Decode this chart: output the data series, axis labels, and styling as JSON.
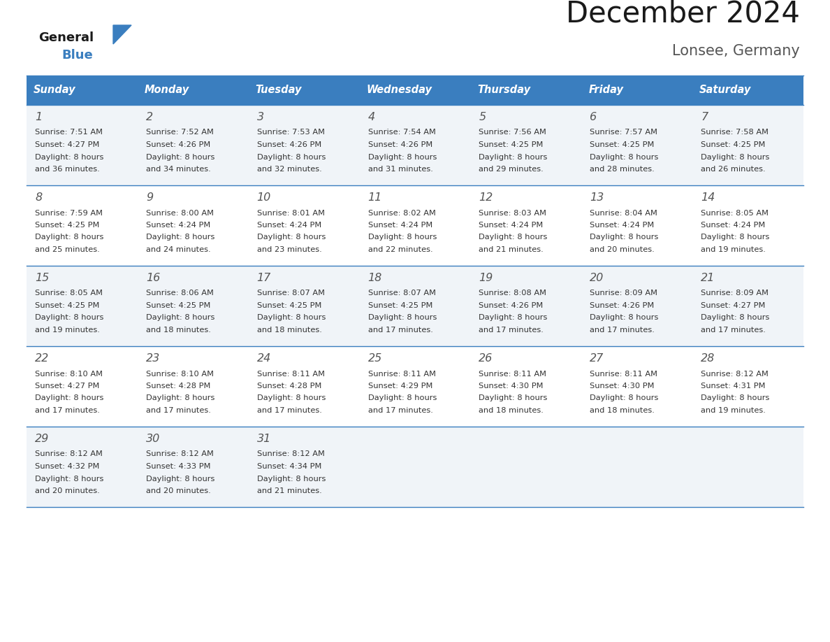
{
  "title": "December 2024",
  "subtitle": "Lonsee, Germany",
  "days_of_week": [
    "Sunday",
    "Monday",
    "Tuesday",
    "Wednesday",
    "Thursday",
    "Friday",
    "Saturday"
  ],
  "header_bg": "#3a7ebf",
  "header_text": "#ffffff",
  "row_bg_odd": "#f0f4f8",
  "row_bg_even": "#ffffff",
  "cell_text": "#333333",
  "day_num_color": "#666666",
  "line_color": "#3a7ebf",
  "weeks": [
    {
      "days": [
        {
          "date": 1,
          "sunrise": "7:51 AM",
          "sunset": "4:27 PM",
          "daylight_hours": 8,
          "daylight_minutes": 36
        },
        {
          "date": 2,
          "sunrise": "7:52 AM",
          "sunset": "4:26 PM",
          "daylight_hours": 8,
          "daylight_minutes": 34
        },
        {
          "date": 3,
          "sunrise": "7:53 AM",
          "sunset": "4:26 PM",
          "daylight_hours": 8,
          "daylight_minutes": 32
        },
        {
          "date": 4,
          "sunrise": "7:54 AM",
          "sunset": "4:26 PM",
          "daylight_hours": 8,
          "daylight_minutes": 31
        },
        {
          "date": 5,
          "sunrise": "7:56 AM",
          "sunset": "4:25 PM",
          "daylight_hours": 8,
          "daylight_minutes": 29
        },
        {
          "date": 6,
          "sunrise": "7:57 AM",
          "sunset": "4:25 PM",
          "daylight_hours": 8,
          "daylight_minutes": 28
        },
        {
          "date": 7,
          "sunrise": "7:58 AM",
          "sunset": "4:25 PM",
          "daylight_hours": 8,
          "daylight_minutes": 26
        }
      ]
    },
    {
      "days": [
        {
          "date": 8,
          "sunrise": "7:59 AM",
          "sunset": "4:25 PM",
          "daylight_hours": 8,
          "daylight_minutes": 25
        },
        {
          "date": 9,
          "sunrise": "8:00 AM",
          "sunset": "4:24 PM",
          "daylight_hours": 8,
          "daylight_minutes": 24
        },
        {
          "date": 10,
          "sunrise": "8:01 AM",
          "sunset": "4:24 PM",
          "daylight_hours": 8,
          "daylight_minutes": 23
        },
        {
          "date": 11,
          "sunrise": "8:02 AM",
          "sunset": "4:24 PM",
          "daylight_hours": 8,
          "daylight_minutes": 22
        },
        {
          "date": 12,
          "sunrise": "8:03 AM",
          "sunset": "4:24 PM",
          "daylight_hours": 8,
          "daylight_minutes": 21
        },
        {
          "date": 13,
          "sunrise": "8:04 AM",
          "sunset": "4:24 PM",
          "daylight_hours": 8,
          "daylight_minutes": 20
        },
        {
          "date": 14,
          "sunrise": "8:05 AM",
          "sunset": "4:24 PM",
          "daylight_hours": 8,
          "daylight_minutes": 19
        }
      ]
    },
    {
      "days": [
        {
          "date": 15,
          "sunrise": "8:05 AM",
          "sunset": "4:25 PM",
          "daylight_hours": 8,
          "daylight_minutes": 19
        },
        {
          "date": 16,
          "sunrise": "8:06 AM",
          "sunset": "4:25 PM",
          "daylight_hours": 8,
          "daylight_minutes": 18
        },
        {
          "date": 17,
          "sunrise": "8:07 AM",
          "sunset": "4:25 PM",
          "daylight_hours": 8,
          "daylight_minutes": 18
        },
        {
          "date": 18,
          "sunrise": "8:07 AM",
          "sunset": "4:25 PM",
          "daylight_hours": 8,
          "daylight_minutes": 17
        },
        {
          "date": 19,
          "sunrise": "8:08 AM",
          "sunset": "4:26 PM",
          "daylight_hours": 8,
          "daylight_minutes": 17
        },
        {
          "date": 20,
          "sunrise": "8:09 AM",
          "sunset": "4:26 PM",
          "daylight_hours": 8,
          "daylight_minutes": 17
        },
        {
          "date": 21,
          "sunrise": "8:09 AM",
          "sunset": "4:27 PM",
          "daylight_hours": 8,
          "daylight_minutes": 17
        }
      ]
    },
    {
      "days": [
        {
          "date": 22,
          "sunrise": "8:10 AM",
          "sunset": "4:27 PM",
          "daylight_hours": 8,
          "daylight_minutes": 17
        },
        {
          "date": 23,
          "sunrise": "8:10 AM",
          "sunset": "4:28 PM",
          "daylight_hours": 8,
          "daylight_minutes": 17
        },
        {
          "date": 24,
          "sunrise": "8:11 AM",
          "sunset": "4:28 PM",
          "daylight_hours": 8,
          "daylight_minutes": 17
        },
        {
          "date": 25,
          "sunrise": "8:11 AM",
          "sunset": "4:29 PM",
          "daylight_hours": 8,
          "daylight_minutes": 17
        },
        {
          "date": 26,
          "sunrise": "8:11 AM",
          "sunset": "4:30 PM",
          "daylight_hours": 8,
          "daylight_minutes": 18
        },
        {
          "date": 27,
          "sunrise": "8:11 AM",
          "sunset": "4:30 PM",
          "daylight_hours": 8,
          "daylight_minutes": 18
        },
        {
          "date": 28,
          "sunrise": "8:12 AM",
          "sunset": "4:31 PM",
          "daylight_hours": 8,
          "daylight_minutes": 19
        }
      ]
    },
    {
      "days": [
        {
          "date": 29,
          "sunrise": "8:12 AM",
          "sunset": "4:32 PM",
          "daylight_hours": 8,
          "daylight_minutes": 20
        },
        {
          "date": 30,
          "sunrise": "8:12 AM",
          "sunset": "4:33 PM",
          "daylight_hours": 8,
          "daylight_minutes": 20
        },
        {
          "date": 31,
          "sunrise": "8:12 AM",
          "sunset": "4:34 PM",
          "daylight_hours": 8,
          "daylight_minutes": 21
        },
        null,
        null,
        null,
        null
      ]
    }
  ]
}
